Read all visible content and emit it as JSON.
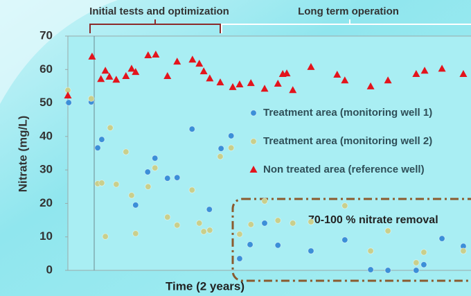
{
  "chart_data": {
    "type": "scatter",
    "y_label": "Nitrate (mg/L)",
    "x_label": "Time (2 years)",
    "annotations": {
      "phase1": "Initial tests and optimization",
      "phase2": "Long term operation",
      "removal": "70-100 % nitrate removal"
    },
    "xlim": [
      0,
      100
    ],
    "ylim": [
      0,
      70
    ],
    "yticks": [
      0,
      10,
      20,
      30,
      40,
      50,
      60,
      70
    ],
    "series": [
      {
        "name": "Treatment area (monitoring well 1)",
        "color": "#3b8fd8",
        "marker": "circle",
        "x": [
          0.2,
          5.8,
          7.4,
          8.4,
          16.8,
          19.8,
          21.6,
          24.7,
          27.1,
          30.8,
          35.1,
          38.0,
          40.5,
          42.6,
          45.2,
          48.8,
          52.1,
          60.3,
          68.7,
          75.1,
          79.4,
          86.4,
          88.3,
          92.8,
          98.1
        ],
        "values": [
          50.1,
          50.3,
          36.6,
          39.1,
          19.5,
          29.4,
          33.5,
          27.5,
          27.7,
          42.2,
          18.2,
          36.4,
          40.2,
          3.5,
          7.7,
          14.1,
          7.5,
          5.8,
          9.1,
          0.2,
          0,
          0,
          1.7,
          9.5,
          7.2
        ]
      },
      {
        "name": "Treatment area (monitoring well 2)",
        "color": "#c9cf8c",
        "marker": "circle",
        "x": [
          0,
          5.8,
          7.4,
          8.4,
          9.3,
          10.5,
          12.0,
          14.4,
          15.8,
          16.8,
          19.9,
          21.6,
          24.7,
          27.1,
          30.8,
          32.6,
          33.7,
          35.2,
          37.8,
          40.5,
          42.6,
          45.4,
          48.8,
          52.1,
          55.8,
          60.3,
          68.7,
          75.1,
          79.4,
          86.4,
          88.3,
          98.1
        ],
        "values": [
          53.8,
          51.3,
          25.9,
          26.1,
          10.1,
          42.6,
          25.7,
          35.4,
          22.4,
          11,
          25,
          30.6,
          15.9,
          13.5,
          24,
          14.1,
          11.6,
          12,
          34,
          36.6,
          10.8,
          13.7,
          20.7,
          14.9,
          14.1,
          14.5,
          19.3,
          5.8,
          11.8,
          2.3,
          5.4,
          5.8
        ]
      },
      {
        "name": "Non treated area (reference well)",
        "color": "#e3141c",
        "marker": "triangle",
        "x": [
          0,
          6.0,
          8.2,
          9.3,
          10.3,
          12.0,
          14.4,
          15.8,
          16.8,
          19.9,
          21.8,
          24.7,
          27.1,
          30.9,
          32.6,
          33.7,
          35.2,
          37.8,
          40.9,
          42.6,
          45.4,
          48.8,
          52.1,
          53.3,
          54.3,
          55.8,
          60.3,
          66.8,
          68.7,
          75.1,
          79.4,
          86.4,
          88.5,
          92.8,
          98.1
        ],
        "values": [
          52.2,
          63.8,
          57.1,
          59.6,
          57.8,
          56.9,
          58,
          60.2,
          59.2,
          64.2,
          64.4,
          58,
          62.3,
          62.9,
          61.7,
          59.4,
          57.3,
          56.1,
          54.7,
          55.5,
          55.9,
          54.2,
          55.7,
          58.6,
          58.8,
          53.8,
          60.7,
          58.4,
          56.7,
          54.9,
          56.7,
          58.6,
          59.6,
          60.2,
          58.6
        ]
      }
    ]
  }
}
